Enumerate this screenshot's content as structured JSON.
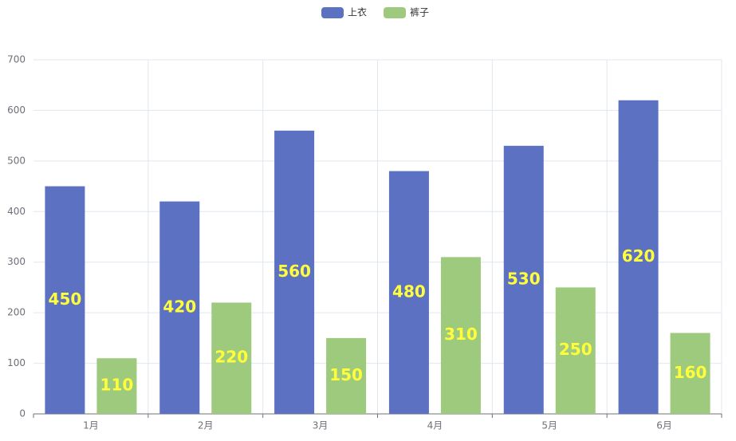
{
  "chart_data": {
    "type": "bar",
    "categories": [
      "1月",
      "2月",
      "3月",
      "4月",
      "5月",
      "6月"
    ],
    "series": [
      {
        "name": "上衣",
        "color": "#5c71c1",
        "values": [
          450,
          420,
          560,
          480,
          530,
          620
        ]
      },
      {
        "name": "裤子",
        "color": "#9eca7e",
        "values": [
          110,
          220,
          150,
          310,
          250,
          160
        ]
      }
    ],
    "ylim": [
      0,
      700
    ],
    "yticks": [
      0,
      100,
      200,
      300,
      400,
      500,
      600,
      700
    ],
    "grid": true,
    "value_labels_shown": true
  }
}
